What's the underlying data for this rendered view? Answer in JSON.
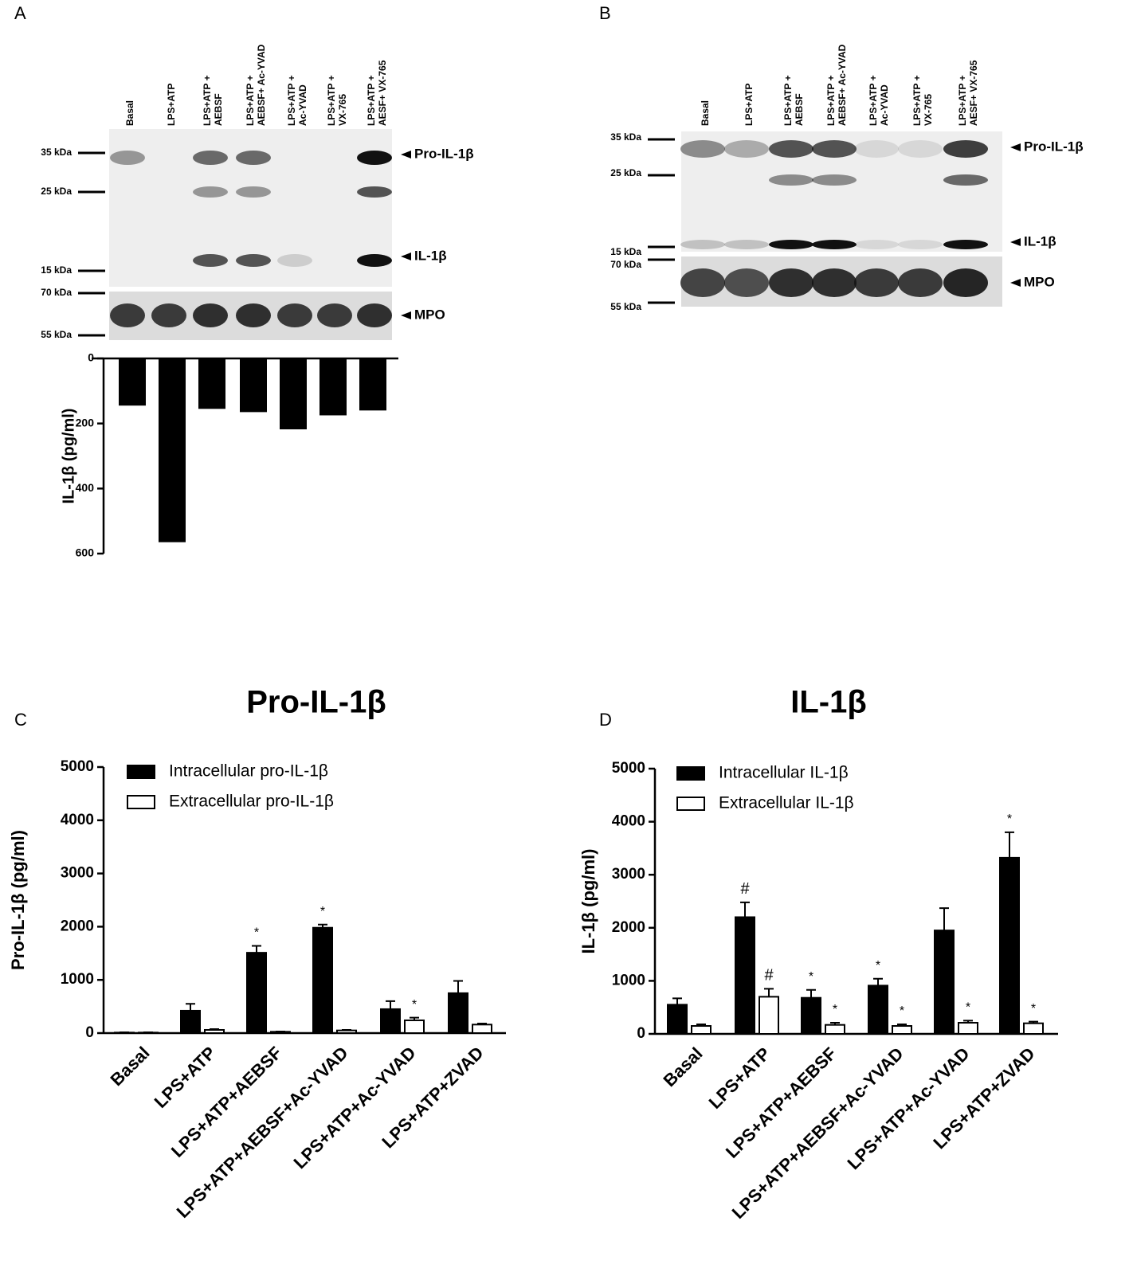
{
  "panel_labels": [
    "A",
    "B",
    "C",
    "D"
  ],
  "blot_a": {
    "lanes": [
      [
        "Basal"
      ],
      [
        "LPS+ATP"
      ],
      [
        "LPS+ATP +",
        "AEBSF"
      ],
      [
        "LPS+ATP +",
        "AEBSF+ Ac-YVAD"
      ],
      [
        "LPS+ATP +",
        "Ac-YVAD"
      ],
      [
        "LPS+ATP +",
        "VX-765"
      ],
      [
        "LPS+ATP +",
        "AESF+ VX-765"
      ]
    ],
    "markers": [
      "35 kDa",
      "25 kDa",
      "15 kDa",
      "70 kDa",
      "55 kDa"
    ],
    "bands": [
      "Pro-IL-1β",
      "IL-1β",
      "MPO"
    ]
  },
  "blot_b": {
    "lanes": [
      [
        "Basal"
      ],
      [
        "LPS+ATP"
      ],
      [
        "LPS+ATP +",
        "AEBSF"
      ],
      [
        "LPS+ATP +",
        "AEBSF+ Ac-YVAD"
      ],
      [
        "LPS+ATP +",
        "Ac-YVAD"
      ],
      [
        "LPS+ATP +",
        "VX-765"
      ],
      [
        "LPS+ATP +",
        "AESF+ VX-765"
      ]
    ],
    "markers": [
      "35 kDa",
      "25 kDa",
      "15 kDa",
      "70 kDa",
      "55 kDa"
    ],
    "bands": [
      "Pro-IL-1β",
      "IL-1β",
      "MPO"
    ]
  },
  "chart_data": [
    {
      "type": "bar",
      "y_label": "IL-1β (pg/ml)",
      "categories": [
        null,
        null,
        null,
        null,
        null,
        null,
        null
      ],
      "values": [
        145,
        565,
        155,
        165,
        218,
        175,
        160
      ],
      "color": "#000000",
      "ylim": [
        0,
        600
      ],
      "yticks": [
        0,
        200,
        400,
        600
      ],
      "inverted": true
    },
    {
      "type": "grouped_bar",
      "title": "Pro-IL-1β",
      "y_label": "Pro-IL-1β (pg/ml)",
      "categories": [
        "Basal",
        "LPS+ATP",
        "LPS+ATP+AEBSF",
        "LPS+ATP+AEBSF+Ac-YVAD",
        "LPS+ATP+Ac-YVAD",
        "LPS+ATP+ZVAD"
      ],
      "series": [
        {
          "name": "Intracellular pro-IL-1β",
          "color": "#000000",
          "values": [
            10,
            420,
            1510,
            1980,
            450,
            750
          ],
          "errors": [
            5,
            130,
            130,
            60,
            150,
            230
          ],
          "annotations": [
            null,
            null,
            "*",
            "*",
            null,
            null
          ]
        },
        {
          "name": "Extracellular pro-IL-1β",
          "color": "#ffffff",
          "values": [
            10,
            60,
            25,
            50,
            240,
            160
          ],
          "errors": [
            5,
            15,
            5,
            10,
            50,
            20
          ],
          "annotations": [
            null,
            null,
            null,
            null,
            "*",
            null
          ]
        }
      ],
      "ylim": [
        0,
        5000
      ],
      "yticks": [
        0,
        1000,
        2000,
        3000,
        4000,
        5000
      ],
      "legend": "top-left"
    },
    {
      "type": "grouped_bar",
      "title": "IL-1β",
      "y_label": "IL-1β (pg/ml)",
      "categories": [
        "Basal",
        "LPS+ATP",
        "LPS+ATP+AEBSF",
        "LPS+ATP+AEBSF+Ac-YVAD",
        "LPS+ATP+Ac-YVAD",
        "LPS+ATP+ZVAD"
      ],
      "series": [
        {
          "name": "Intracellular IL-1β",
          "color": "#000000",
          "values": [
            550,
            2200,
            680,
            910,
            1950,
            3320
          ],
          "errors": [
            120,
            280,
            150,
            130,
            420,
            480
          ],
          "annotations": [
            null,
            "#",
            "*",
            "*",
            null,
            "*"
          ]
        },
        {
          "name": "Extracellular IL-1β",
          "color": "#ffffff",
          "values": [
            150,
            700,
            170,
            150,
            210,
            200
          ],
          "errors": [
            30,
            150,
            40,
            30,
            40,
            30
          ],
          "annotations": [
            null,
            "#",
            "*",
            "*",
            "*",
            "*"
          ]
        }
      ],
      "ylim": [
        0,
        5000
      ],
      "yticks": [
        0,
        1000,
        2000,
        3000,
        4000,
        5000
      ],
      "legend": "top-left"
    }
  ]
}
